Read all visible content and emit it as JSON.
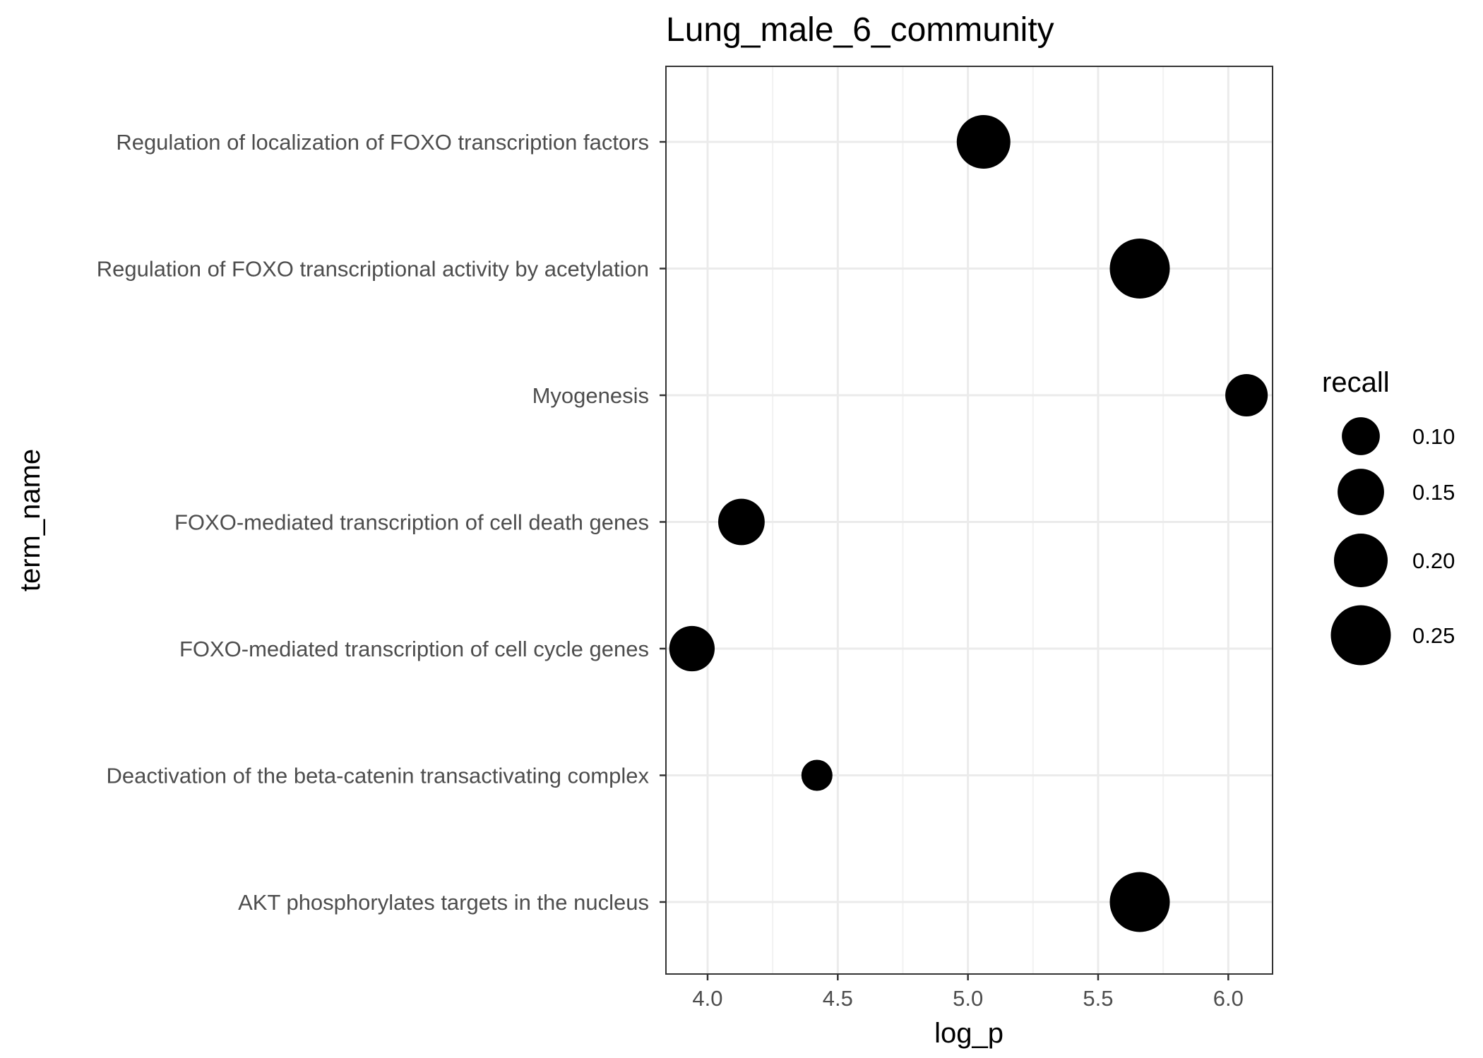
{
  "chart_data": {
    "type": "scatter",
    "title": "Lung_male_6_community",
    "xlabel": "log_p",
    "ylabel": "term_name",
    "xlim": [
      3.84,
      6.17
    ],
    "x_ticks": [
      "4.0",
      "4.5",
      "5.0",
      "5.5",
      "6.0"
    ],
    "categories": [
      "Regulation of localization of FOXO transcription factors",
      "Regulation of FOXO transcriptional activity by acetylation",
      "Myogenesis",
      "FOXO-mediated transcription of cell death genes",
      "FOXO-mediated transcription of cell cycle genes",
      "Deactivation of the beta-catenin transactivating complex",
      "AKT phosphorylates targets in the nucleus"
    ],
    "points": [
      {
        "term": "Regulation of localization of FOXO transcription factors",
        "x": 5.06,
        "recall": 0.2
      },
      {
        "term": "Regulation of FOXO transcriptional activity by acetylation",
        "x": 5.66,
        "recall": 0.25
      },
      {
        "term": "Myogenesis",
        "x": 6.07,
        "recall": 0.125
      },
      {
        "term": "FOXO-mediated transcription of cell death genes",
        "x": 4.13,
        "recall": 0.15
      },
      {
        "term": "FOXO-mediated transcription of cell cycle genes",
        "x": 3.94,
        "recall": 0.143
      },
      {
        "term": "Deactivation of the beta-catenin transactivating complex",
        "x": 4.42,
        "recall": 0.067
      },
      {
        "term": "AKT phosphorylates targets in the nucleus",
        "x": 5.66,
        "recall": 0.25
      }
    ],
    "grid": true,
    "legend": {
      "title": "recall",
      "position": "right",
      "entries": [
        {
          "label": "0.10",
          "value": 0.1
        },
        {
          "label": "0.15",
          "value": 0.15
        },
        {
          "label": "0.20",
          "value": 0.2
        },
        {
          "label": "0.25",
          "value": 0.25
        }
      ]
    },
    "colors": {
      "point": "#000000",
      "major_grid": "#ebebeb",
      "minor_grid": "#f2f2f2",
      "panel_border": "#333333"
    }
  }
}
